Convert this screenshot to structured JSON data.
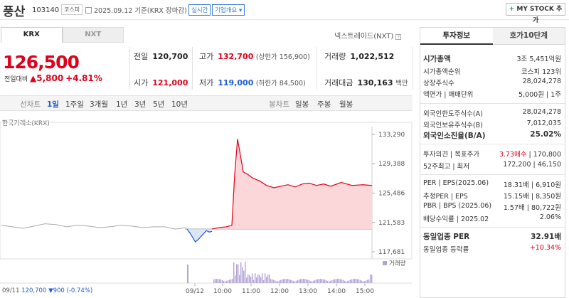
{
  "header": {
    "name": "풍산",
    "code": "103140",
    "market": "코스피",
    "date_info": "2025.09.12 기준(KRX 장마감)",
    "realtime": "실시간",
    "company": "기업개요",
    "mystock": "MY STOCK 추가"
  },
  "tabs": {
    "krx": "KRX",
    "nxt": "NXT",
    "nxt_label": "넥스트레이드(NXT)"
  },
  "quote": {
    "price": "126,500",
    "change_label": "전일대비",
    "change": "5,800",
    "change_pct": "+4.81%",
    "prev_close_label": "전일",
    "prev_close": "120,700",
    "high_label": "고가",
    "high": "132,700",
    "high_limit": "(상한가 156,900)",
    "volume_label": "거래량",
    "volume": "1,022,512",
    "open_label": "시가",
    "open": "121,000",
    "low_label": "저가",
    "low": "119,000",
    "low_limit": "(하한가 84,500)",
    "amount_label": "거래대금",
    "amount": "130,163",
    "amount_unit": "백만"
  },
  "periods": {
    "line": "선차트",
    "d1": "1일",
    "w1": "1주일",
    "m3": "3개월",
    "y1": "1년",
    "y3": "3년",
    "y5": "5년",
    "y10": "10년",
    "candle": "봉차트",
    "daily": "일봉",
    "weekly": "주봉",
    "monthly": "월봉"
  },
  "chart": {
    "exchange": "한국거래소(KRX)",
    "volume_legend": "거래량",
    "bottom_left_date": "09/11",
    "bottom_left_price": "120,700",
    "bottom_left_change": "▼900",
    "bottom_left_pct": "(-0.74%)"
  },
  "chart_data": {
    "type": "line",
    "y_ticks": [
      "133,290",
      "129,388",
      "125,486",
      "121,583",
      "117,681"
    ],
    "x_ticks": [
      "09/12",
      "10:00",
      "11:00",
      "12:00",
      "13:00",
      "14:00",
      "15:00"
    ],
    "prev_close": 120700,
    "ylim": [
      117681,
      133290
    ],
    "series": [
      {
        "values": [
          121200,
          121000,
          120800,
          121100,
          121400,
          121300,
          121000,
          121200,
          121100,
          120900,
          121000,
          121200,
          121100,
          120900,
          121000,
          121000,
          120700,
          120900
        ]
      },
      {
        "values": [
          120700,
          120200,
          119600,
          119000,
          119300,
          119700,
          120100,
          120500,
          120300,
          120400
        ]
      },
      {
        "values": [
          120700,
          120900,
          121000,
          121200,
          128000,
          132700,
          130500,
          128300,
          128000,
          127500,
          127100,
          126500,
          126200,
          126400,
          126600,
          126300,
          126700,
          126800,
          126500,
          126700,
          126400,
          126900,
          126500,
          126600,
          126500
        ]
      }
    ]
  },
  "right": {
    "tab_invest": "투자정보",
    "tab_hoga": "호가10단계",
    "market_cap_label": "시가총액",
    "market_cap": "3조 5,451억원",
    "rank_label": "시가총액순위",
    "rank": "코스피 123위",
    "shares_label": "상장주식수",
    "shares": "28,024,278",
    "face_label": "액면가 | 매매단위",
    "face": "5,000원 | 1주",
    "foreign_limit_label": "외국인한도주식수(A)",
    "foreign_limit": "28,024,278",
    "foreign_hold_label": "외국인보유주식수(B)",
    "foreign_hold": "7,012,035",
    "foreign_ratio_label": "외국인소진율(B/A)",
    "foreign_ratio": "25.02%",
    "opinion_label": "투자의견 | 목표주가",
    "opinion": "3.73매수",
    "target": "170,800",
    "w52_label": "52주최고 | 최저",
    "w52_high": "172,200",
    "w52_low": "46,150",
    "per_label": "PER | EPS(2025.06)",
    "per": "18.31배",
    "eps": "6,910원",
    "fper_label": "추정PER | EPS",
    "fper": "15.15배",
    "feps": "8,350원",
    "pbr_label": "PBR | BPS (2025.06)",
    "pbr": "1.57배",
    "bps": "80,722원",
    "div_label": "배당수익률 | 2025.02",
    "div": "2.06%",
    "ind_per_label": "동일업종 PER",
    "ind_per": "32.91배",
    "ind_chg_label": "동일업종 등락률",
    "ind_chg": "+10.34%"
  }
}
